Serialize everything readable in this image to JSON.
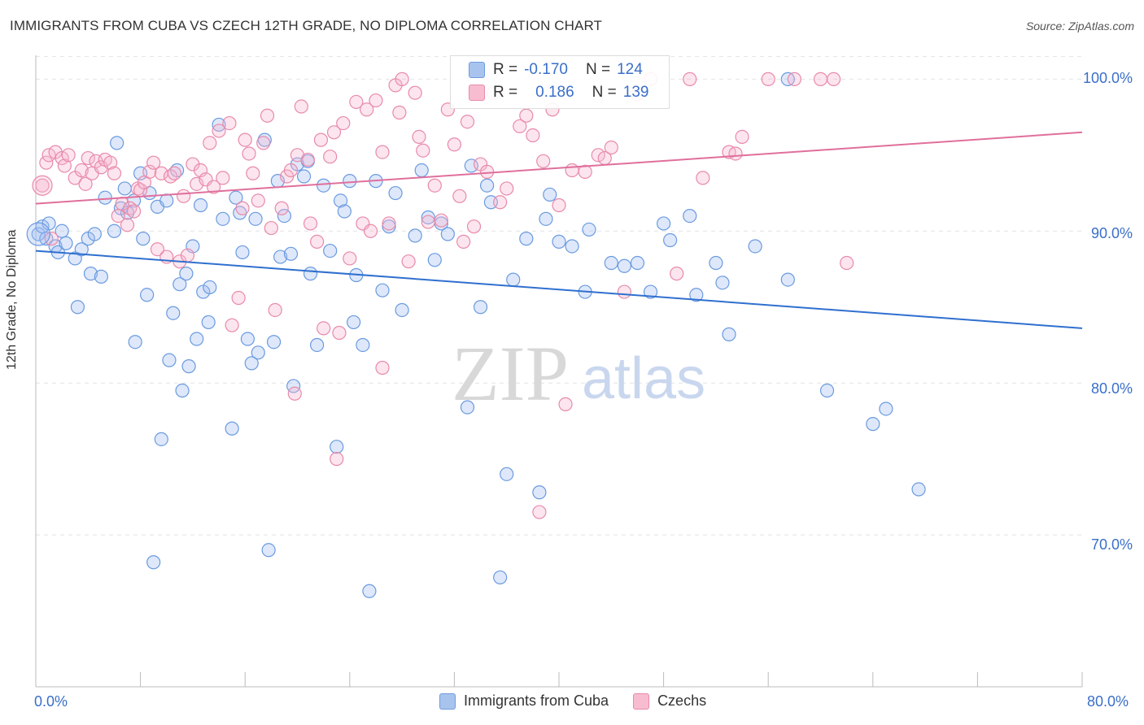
{
  "title": "IMMIGRANTS FROM CUBA VS CZECH 12TH GRADE, NO DIPLOMA CORRELATION CHART",
  "source": "Source: ZipAtlas.com",
  "watermark": {
    "zip": "ZIP",
    "atlas": "atlas"
  },
  "legend": {
    "r_label": "R =",
    "n_label": "N =",
    "rows": [
      {
        "r": "-0.170",
        "n": "124",
        "color": "#a8c4ee",
        "border": "#6f9be0"
      },
      {
        "r": "0.186",
        "n": "139",
        "color": "#f7bcd0",
        "border": "#e88aaa"
      }
    ]
  },
  "colors": {
    "blue": "#6a9ae0",
    "blue_fill": "rgba(160,190,240,0.35)",
    "blue_line": "#2f6fcf",
    "pink": "#e88aaa",
    "pink_fill": "rgba(245,180,205,0.35)",
    "pink_line": "#e06f9c",
    "tick_text": "#3a6fc9"
  },
  "chart_data": {
    "type": "scatter",
    "xlabel": "",
    "ylabel": "12th Grade, No Diploma",
    "xlim": [
      0,
      80
    ],
    "ylim": [
      60,
      102
    ],
    "x_tick_labels": [
      "0.0%",
      "80.0%"
    ],
    "y_ticks": [
      70,
      80,
      90,
      100
    ],
    "y_tick_labels": [
      "70.0%",
      "80.0%",
      "90.0%",
      "100.0%"
    ],
    "grid": true,
    "series": [
      {
        "name": "Immigrants from Cuba",
        "trend": [
          [
            0,
            88.7
          ],
          [
            80,
            83.6
          ]
        ],
        "points": [
          [
            0.2,
            89.8
          ],
          [
            0.5,
            90.3
          ],
          [
            0.8,
            89.5
          ],
          [
            1.0,
            90.5
          ],
          [
            1.5,
            89.0
          ],
          [
            1.7,
            88.6
          ],
          [
            2.0,
            90.0
          ],
          [
            2.3,
            89.2
          ],
          [
            3.0,
            88.2
          ],
          [
            3.2,
            85.0
          ],
          [
            3.5,
            88.8
          ],
          [
            4.0,
            89.5
          ],
          [
            4.2,
            87.2
          ],
          [
            4.5,
            89.8
          ],
          [
            5.0,
            87.0
          ],
          [
            5.3,
            92.2
          ],
          [
            6.0,
            90.0
          ],
          [
            6.2,
            95.8
          ],
          [
            6.5,
            91.5
          ],
          [
            6.8,
            92.8
          ],
          [
            7.0,
            91.2
          ],
          [
            7.5,
            92.0
          ],
          [
            7.6,
            82.7
          ],
          [
            8.0,
            93.8
          ],
          [
            8.2,
            89.5
          ],
          [
            8.5,
            85.8
          ],
          [
            8.7,
            92.5
          ],
          [
            9.0,
            68.2
          ],
          [
            9.3,
            91.6
          ],
          [
            9.6,
            76.3
          ],
          [
            10.0,
            92.0
          ],
          [
            10.2,
            81.5
          ],
          [
            10.5,
            84.6
          ],
          [
            10.8,
            94.0
          ],
          [
            11.0,
            86.5
          ],
          [
            11.2,
            79.5
          ],
          [
            11.5,
            87.2
          ],
          [
            11.7,
            81.1
          ],
          [
            12.0,
            89.0
          ],
          [
            12.3,
            82.9
          ],
          [
            12.6,
            91.7
          ],
          [
            12.8,
            86.0
          ],
          [
            13.2,
            84.0
          ],
          [
            13.3,
            86.3
          ],
          [
            14.0,
            97.0
          ],
          [
            14.3,
            90.8
          ],
          [
            15.0,
            77.0
          ],
          [
            15.3,
            92.2
          ],
          [
            15.6,
            91.2
          ],
          [
            15.8,
            88.6
          ],
          [
            16.2,
            82.9
          ],
          [
            16.5,
            81.3
          ],
          [
            16.8,
            90.8
          ],
          [
            17.0,
            82.0
          ],
          [
            17.5,
            96.0
          ],
          [
            17.8,
            69.0
          ],
          [
            18.2,
            82.7
          ],
          [
            18.5,
            93.3
          ],
          [
            18.7,
            88.3
          ],
          [
            19.0,
            91.0
          ],
          [
            19.5,
            88.5
          ],
          [
            19.7,
            79.8
          ],
          [
            20.0,
            94.4
          ],
          [
            20.5,
            93.6
          ],
          [
            20.8,
            94.6
          ],
          [
            21.0,
            87.2
          ],
          [
            21.5,
            82.5
          ],
          [
            22.0,
            93.0
          ],
          [
            22.5,
            88.7
          ],
          [
            23.0,
            75.8
          ],
          [
            23.3,
            92.0
          ],
          [
            23.6,
            91.3
          ],
          [
            24.0,
            93.3
          ],
          [
            24.3,
            84.0
          ],
          [
            24.5,
            87.1
          ],
          [
            25.0,
            82.5
          ],
          [
            25.5,
            66.3
          ],
          [
            26.0,
            93.3
          ],
          [
            26.5,
            86.1
          ],
          [
            27.0,
            90.3
          ],
          [
            27.5,
            92.5
          ],
          [
            28.0,
            84.8
          ],
          [
            29.0,
            89.7
          ],
          [
            29.5,
            94.0
          ],
          [
            30.0,
            90.9
          ],
          [
            30.5,
            88.1
          ],
          [
            31.0,
            90.5
          ],
          [
            31.5,
            89.8
          ],
          [
            33.0,
            78.4
          ],
          [
            33.3,
            94.3
          ],
          [
            34.0,
            85.0
          ],
          [
            34.5,
            93.0
          ],
          [
            34.8,
            91.9
          ],
          [
            35.5,
            67.2
          ],
          [
            36.0,
            74.0
          ],
          [
            36.5,
            86.8
          ],
          [
            37.5,
            89.5
          ],
          [
            38.5,
            72.8
          ],
          [
            39.0,
            90.8
          ],
          [
            39.3,
            92.4
          ],
          [
            40.0,
            89.3
          ],
          [
            41.0,
            89.0
          ],
          [
            42.0,
            86.0
          ],
          [
            42.3,
            90.1
          ],
          [
            44.0,
            87.9
          ],
          [
            45.0,
            87.7
          ],
          [
            46.0,
            87.9
          ],
          [
            47.0,
            86.0
          ],
          [
            48.0,
            90.5
          ],
          [
            48.5,
            89.4
          ],
          [
            50.0,
            91.0
          ],
          [
            50.5,
            85.8
          ],
          [
            52.0,
            87.9
          ],
          [
            52.5,
            86.6
          ],
          [
            53.0,
            83.2
          ],
          [
            55.0,
            89.0
          ],
          [
            57.5,
            86.8
          ],
          [
            57.5,
            100.0
          ],
          [
            60.5,
            79.5
          ],
          [
            64.0,
            77.3
          ],
          [
            65.0,
            78.3
          ],
          [
            67.5,
            73.0
          ]
        ]
      },
      {
        "name": "Czechs",
        "trend": [
          [
            0,
            91.8
          ],
          [
            80,
            96.5
          ]
        ],
        "points": [
          [
            0.5,
            93.0
          ],
          [
            0.8,
            94.5
          ],
          [
            1.0,
            95.0
          ],
          [
            1.2,
            89.5
          ],
          [
            1.5,
            95.2
          ],
          [
            2.0,
            94.8
          ],
          [
            2.2,
            94.3
          ],
          [
            2.5,
            95.0
          ],
          [
            3.0,
            93.5
          ],
          [
            3.5,
            94.0
          ],
          [
            3.8,
            93.1
          ],
          [
            4.0,
            94.8
          ],
          [
            4.3,
            93.8
          ],
          [
            4.6,
            94.6
          ],
          [
            5.0,
            94.2
          ],
          [
            5.3,
            94.7
          ],
          [
            5.7,
            94.5
          ],
          [
            6.0,
            93.8
          ],
          [
            6.3,
            91.0
          ],
          [
            6.6,
            91.8
          ],
          [
            7.0,
            90.4
          ],
          [
            7.2,
            91.5
          ],
          [
            7.5,
            91.3
          ],
          [
            7.8,
            92.8
          ],
          [
            8.0,
            92.7
          ],
          [
            8.3,
            93.2
          ],
          [
            8.7,
            93.9
          ],
          [
            9.0,
            94.5
          ],
          [
            9.3,
            88.8
          ],
          [
            9.6,
            93.8
          ],
          [
            10.0,
            88.3
          ],
          [
            10.3,
            93.6
          ],
          [
            10.6,
            93.8
          ],
          [
            11.0,
            88.0
          ],
          [
            11.3,
            92.3
          ],
          [
            11.6,
            88.4
          ],
          [
            12.0,
            94.4
          ],
          [
            12.3,
            93.1
          ],
          [
            12.6,
            94.0
          ],
          [
            13.0,
            93.4
          ],
          [
            13.3,
            95.8
          ],
          [
            13.6,
            92.9
          ],
          [
            14.0,
            96.6
          ],
          [
            14.3,
            93.5
          ],
          [
            14.8,
            97.1
          ],
          [
            15.0,
            83.8
          ],
          [
            15.5,
            85.6
          ],
          [
            15.8,
            91.5
          ],
          [
            16.0,
            96.0
          ],
          [
            16.3,
            95.1
          ],
          [
            16.6,
            93.8
          ],
          [
            17.0,
            92.0
          ],
          [
            17.4,
            95.8
          ],
          [
            17.7,
            97.6
          ],
          [
            18.0,
            90.2
          ],
          [
            18.3,
            84.8
          ],
          [
            18.8,
            91.5
          ],
          [
            19.2,
            93.6
          ],
          [
            19.5,
            94.0
          ],
          [
            19.8,
            79.3
          ],
          [
            20.0,
            95.0
          ],
          [
            20.3,
            98.2
          ],
          [
            20.8,
            94.7
          ],
          [
            21.0,
            90.5
          ],
          [
            21.5,
            89.3
          ],
          [
            21.8,
            96.0
          ],
          [
            22.0,
            83.6
          ],
          [
            22.5,
            94.9
          ],
          [
            22.8,
            96.5
          ],
          [
            23.2,
            83.3
          ],
          [
            23.5,
            97.1
          ],
          [
            24.0,
            88.2
          ],
          [
            24.5,
            98.5
          ],
          [
            25.0,
            90.5
          ],
          [
            25.3,
            98.0
          ],
          [
            25.6,
            90.0
          ],
          [
            26.0,
            98.6
          ],
          [
            26.5,
            95.2
          ],
          [
            27.0,
            90.5
          ],
          [
            27.5,
            99.6
          ],
          [
            27.8,
            97.8
          ],
          [
            28.0,
            100.0
          ],
          [
            28.5,
            88.0
          ],
          [
            29.0,
            99.1
          ],
          [
            29.3,
            96.2
          ],
          [
            29.6,
            95.3
          ],
          [
            30.0,
            90.6
          ],
          [
            30.5,
            93.0
          ],
          [
            31.0,
            90.7
          ],
          [
            31.5,
            98.0
          ],
          [
            32.0,
            95.7
          ],
          [
            32.4,
            92.3
          ],
          [
            32.7,
            89.3
          ],
          [
            33.0,
            97.2
          ],
          [
            33.5,
            90.3
          ],
          [
            34.0,
            94.4
          ],
          [
            34.5,
            93.9
          ],
          [
            35.0,
            99.1
          ],
          [
            35.5,
            91.9
          ],
          [
            36.0,
            92.8
          ],
          [
            37.0,
            96.9
          ],
          [
            37.5,
            97.6
          ],
          [
            38.0,
            96.3
          ],
          [
            38.5,
            71.5
          ],
          [
            38.8,
            94.6
          ],
          [
            39.5,
            98.0
          ],
          [
            40.0,
            91.7
          ],
          [
            40.5,
            78.6
          ],
          [
            41.0,
            94.0
          ],
          [
            42.0,
            93.9
          ],
          [
            43.0,
            95.0
          ],
          [
            43.5,
            94.8
          ],
          [
            44.0,
            95.5
          ],
          [
            45.0,
            86.0
          ],
          [
            46.0,
            99.0
          ],
          [
            47.0,
            100.0
          ],
          [
            49.0,
            87.2
          ],
          [
            50.0,
            100.0
          ],
          [
            51.0,
            93.5
          ],
          [
            53.0,
            95.2
          ],
          [
            53.5,
            95.1
          ],
          [
            54.0,
            96.2
          ],
          [
            56.0,
            100.0
          ],
          [
            58.0,
            100.0
          ],
          [
            60.0,
            100.0
          ],
          [
            61.0,
            100.0
          ],
          [
            62.0,
            87.9
          ],
          [
            26.5,
            81.0
          ],
          [
            23.0,
            75.0
          ]
        ]
      }
    ]
  }
}
